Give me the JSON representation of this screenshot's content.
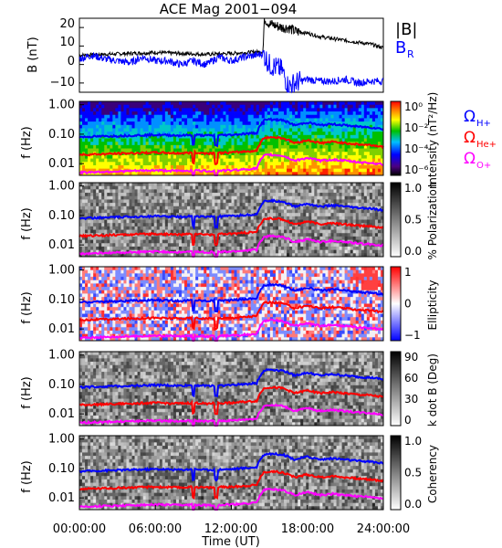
{
  "title": "ACE Mag 2001−094",
  "xlabel": "Time (UT)",
  "colors": {
    "B": "#000000",
    "BR": "#0000ff",
    "H": "#0000ff",
    "He": "#ff0000",
    "O": "#ff00ff",
    "axis": "#000000"
  },
  "chart_data": [
    {
      "type": "line",
      "panel": "magnetic-field",
      "ylabel": "B (nT)",
      "ylim": [
        -15,
        25
      ],
      "yticks": [
        "20",
        "10",
        "0",
        "−10"
      ],
      "x_unit": "hours UT",
      "series": [
        {
          "name": "|B|",
          "x": [
            0,
            2,
            4,
            6,
            8,
            10,
            12,
            14.5,
            14.6,
            15,
            15.5,
            16,
            16.5,
            17,
            18,
            19,
            20,
            21,
            22,
            23,
            24
          ],
          "values": [
            5,
            5.5,
            6,
            6.5,
            6,
            5.5,
            6,
            7,
            25,
            22,
            21,
            20,
            20,
            18,
            17,
            15,
            14,
            13,
            12,
            11,
            9
          ]
        },
        {
          "name": "B",
          "subscript": "R",
          "x": [
            0,
            1,
            2,
            3,
            4,
            5,
            6,
            7,
            8,
            9,
            10,
            11,
            12,
            13,
            14,
            14.5,
            15,
            16,
            16.5,
            17,
            18,
            19,
            20,
            21,
            22,
            23,
            24
          ],
          "values": [
            3,
            5,
            3,
            2,
            1,
            4,
            2,
            2,
            0,
            2,
            0,
            4,
            2,
            4,
            5,
            6,
            0,
            -3,
            -12,
            -10,
            -8,
            -9,
            -9,
            -8,
            -10,
            -9,
            -9
          ]
        }
      ]
    },
    {
      "type": "heatmap",
      "panel": "intensity",
      "ylabel": "f (Hz)",
      "yticks": [
        "1.00",
        "0.10",
        "0.01"
      ],
      "colorbar_label": "Intensity (nT²/Hz)",
      "colorbar_ticks": [
        "10⁰",
        "10⁻²",
        "10⁻⁴",
        "10⁻⁶"
      ]
    },
    {
      "type": "heatmap",
      "panel": "polarization",
      "ylabel": "f (Hz)",
      "yticks": [
        "1.00",
        "0.10",
        "0.01"
      ],
      "colorbar_label": "% Polarization",
      "colorbar_ticks": [
        "1.0",
        "0.5",
        "0.0"
      ]
    },
    {
      "type": "heatmap",
      "panel": "ellipticity",
      "ylabel": "f (Hz)",
      "yticks": [
        "1.00",
        "0.10",
        "0.01"
      ],
      "colorbar_label": "Ellipticity",
      "colorbar_ticks": [
        "1",
        "0",
        "−1"
      ]
    },
    {
      "type": "heatmap",
      "panel": "k-dot-b",
      "ylabel": "f (Hz)",
      "yticks": [
        "1.00",
        "0.10",
        "0.01"
      ],
      "colorbar_label": "k dot B (Deg)",
      "colorbar_ticks": [
        "90",
        "60",
        "30",
        "0"
      ]
    },
    {
      "type": "heatmap",
      "panel": "coherency",
      "ylabel": "f (Hz)",
      "yticks": [
        "1.00",
        "0.10",
        "0.01"
      ],
      "colorbar_label": "Coherency",
      "colorbar_ticks": [
        "1.0",
        "0.5",
        "0.0"
      ]
    }
  ],
  "gyrofrequencies": {
    "x": [
      0,
      2,
      4,
      6,
      8,
      9,
      10,
      12,
      14,
      14.6,
      15,
      16,
      17,
      18,
      19,
      20,
      21,
      22,
      23,
      24
    ],
    "H_plus_hz": [
      0.08,
      0.085,
      0.09,
      0.095,
      0.09,
      0.095,
      0.09,
      0.095,
      0.11,
      0.3,
      0.32,
      0.3,
      0.2,
      0.25,
      0.2,
      0.22,
      0.2,
      0.18,
      0.17,
      0.15
    ]
  },
  "xticks": [
    "00:00:00",
    "06:00:00",
    "12:00:00",
    "18:00:00",
    "24:00:00"
  ],
  "legend": {
    "top": [
      {
        "text": "|B|",
        "sub": ""
      },
      {
        "text": "B",
        "sub": "R"
      }
    ],
    "species": [
      {
        "text": "Ω",
        "sub": "H+"
      },
      {
        "text": "Ω",
        "sub": "He+"
      },
      {
        "text": "Ω",
        "sub": "O+"
      }
    ]
  }
}
